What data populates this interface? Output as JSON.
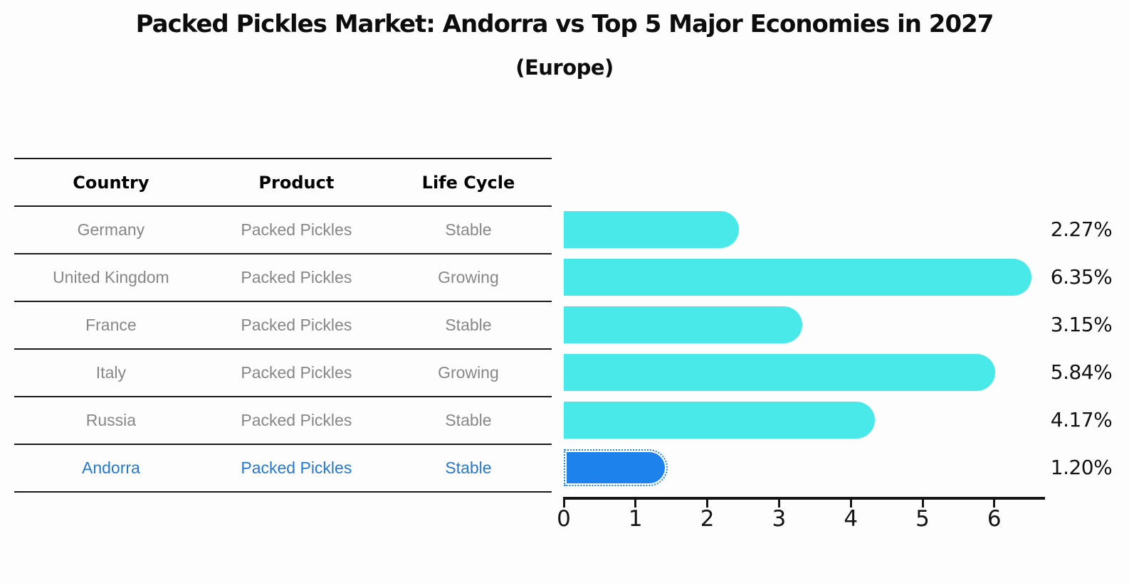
{
  "title": "Packed Pickles Market: Andorra vs Top 5 Major Economies in 2027",
  "subtitle": "(Europe)",
  "table": {
    "headers": [
      "Country",
      "Product",
      "Life Cycle"
    ],
    "rows": [
      {
        "country": "Germany",
        "product": "Packed Pickles",
        "life_cycle": "Stable",
        "highlight": false
      },
      {
        "country": "United Kingdom",
        "product": "Packed Pickles",
        "life_cycle": "Growing",
        "highlight": false
      },
      {
        "country": "France",
        "product": "Packed Pickles",
        "life_cycle": "Stable",
        "highlight": false
      },
      {
        "country": "Italy",
        "product": "Packed Pickles",
        "life_cycle": "Growing",
        "highlight": false
      },
      {
        "country": "Russia",
        "product": "Packed Pickles",
        "life_cycle": "Stable",
        "highlight": false
      },
      {
        "country": "Andorra",
        "product": "Packed Pickles",
        "life_cycle": "Stable",
        "highlight": true
      }
    ]
  },
  "chart_data": {
    "type": "bar",
    "orientation": "horizontal",
    "title": "Packed Pickles Market: Andorra vs Top 5 Major Economies in 2027",
    "subtitle": "(Europe)",
    "categories": [
      "Germany",
      "United Kingdom",
      "France",
      "Italy",
      "Russia",
      "Andorra"
    ],
    "values": [
      2.27,
      6.35,
      3.15,
      5.84,
      4.17,
      1.2
    ],
    "value_labels": [
      "2.27%",
      "6.35%",
      "3.15%",
      "5.84%",
      "4.17%",
      "1.20%"
    ],
    "x_tick_labels": [
      "0",
      "1",
      "2",
      "3",
      "4",
      "5",
      "6"
    ],
    "xlim": [
      0,
      6.7
    ],
    "grid": false,
    "legend": false,
    "highlight_category": "Andorra",
    "colors": {
      "bar": "#4AE9E9",
      "highlight_bar": "#1E82EC",
      "highlight_text": "#2778D0",
      "table_text": "#878787",
      "header_text": "#000000",
      "axis": "#161616",
      "background": "#FDFDFD"
    }
  }
}
